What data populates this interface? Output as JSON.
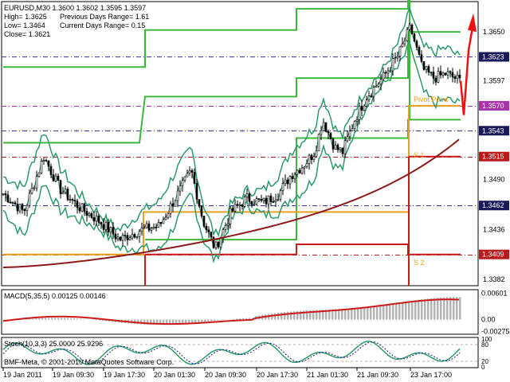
{
  "window": {
    "title": "EURUSD,M30",
    "ohlc": "1.3600 1.3602 1.3595 1.3597"
  },
  "info_panel": {
    "high": "High= 1.3625",
    "low": "Low= 1.3464",
    "close": "Close= 1.3621",
    "prev_range": "Previous Days Range= 1.61",
    "curr_range": "Current Days Range= 0.15"
  },
  "main_chart": {
    "ylim": [
      1.3376,
      1.3682
    ],
    "price_labels": [
      {
        "text": "1.3650",
        "v": 1.365
      },
      {
        "text": "1.3597",
        "v": 1.3597
      },
      {
        "text": "1.3490",
        "v": 1.349
      },
      {
        "text": "1.3436",
        "v": 1.3436
      },
      {
        "text": "1.3382",
        "v": 1.3382
      }
    ],
    "level_markers": [
      {
        "text": "1.3623",
        "v": 1.3623,
        "bg": "#1a1a5a",
        "fg": "#ffffff",
        "line": "#3a3aaa"
      },
      {
        "text": "1.3570",
        "v": 1.357,
        "bg": "#aa33aa",
        "fg": "#ffffff",
        "line": "#aa33aa"
      },
      {
        "text": "1.3543",
        "v": 1.3543,
        "bg": "#1a1a5a",
        "fg": "#ffffff",
        "line": "#3a3aaa"
      },
      {
        "text": "1.3515",
        "v": 1.3515,
        "bg": "#bb1a1a",
        "fg": "#ffffff",
        "line": "#bb1a1a"
      },
      {
        "text": "1.3462",
        "v": 1.3462,
        "bg": "#1a1a5a",
        "fg": "#ffffff",
        "line": "#3a3aaa"
      },
      {
        "text": "1.3409",
        "v": 1.3409,
        "bg": "#bb1a1a",
        "fg": "#ffffff",
        "line": "#bb1a1a"
      }
    ],
    "annotations": {
      "pivot_label": "Pivot Point",
      "s1_label": "S 1",
      "s2_label": "S 2"
    }
  },
  "macd": {
    "label": "MACD(5,35,5) 0.00125 0.00146",
    "ylim": [
      -0.0032,
      0.0065
    ],
    "labels": [
      {
        "text": "0.00601",
        "v": 0.00601
      },
      {
        "text": "0.00",
        "v": 0.0
      },
      {
        "text": "-0.00275",
        "v": -0.00275
      }
    ]
  },
  "stoch": {
    "label": "Stoch(10,3,3) 25.0000 25.9296",
    "labels": [
      {
        "text": "100",
        "v": 100
      },
      {
        "text": "80",
        "v": 80
      },
      {
        "text": "20",
        "v": 20
      },
      {
        "text": "0",
        "v": 0
      }
    ]
  },
  "copyright": "BMF-Meta, © 2001-2010 MetaQuotes Software Corp.",
  "time_axis": [
    "19 Jan 2011",
    "19 Jan 09:30",
    "19 Jan 17:30",
    "20 Jan 01:30",
    "20 Jan 09:30",
    "20 Jan 17:30",
    "21 Jan 01:30",
    "21 Jan 09:30",
    "23 Jan 17:00"
  ],
  "colors": {
    "bollinger": "#2e9a6a",
    "ma": "#8b1a1a",
    "range_channel": "#3cb83c",
    "pivot": "#e8a020",
    "support": "#cc1a1a",
    "macd_hist": "#b4b4b4",
    "macd_signal": "#cc1a1a",
    "stoch_main": "#2e9a6a",
    "stoch_signal": "#1a1a8a",
    "forecast_arrow": "#ee1111"
  }
}
